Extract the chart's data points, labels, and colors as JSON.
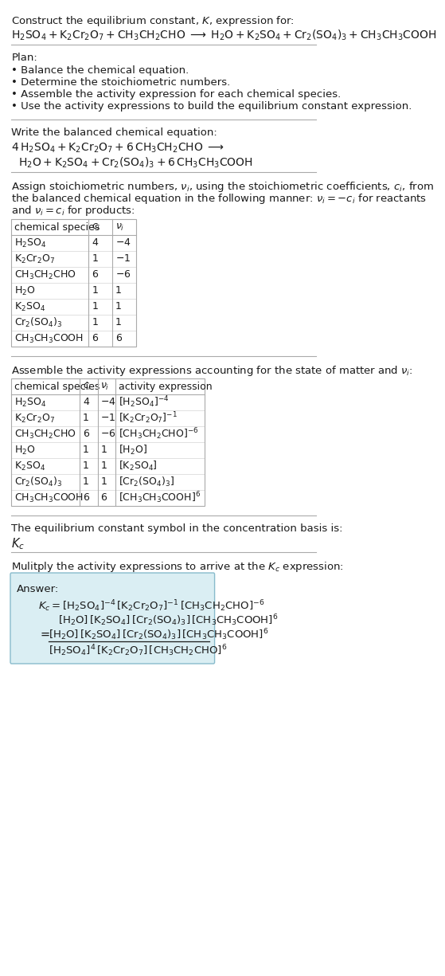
{
  "title_line1": "Construct the equilibrium constant, $K$, expression for:",
  "reaction_unbalanced": "$\\mathrm{H_2SO_4 + K_2Cr_2O_7 + CH_3CH_2CHO \\;\\longrightarrow\\; H_2O + K_2SO_4 + Cr_2(SO_4)_3 + CH_3CH_3COOH}$",
  "plan_header": "Plan:",
  "plan_items": [
    "\\textbf{\\cdot} Balance the chemical equation.",
    "\\textbf{\\cdot} Determine the stoichiometric numbers.",
    "\\textbf{\\cdot} Assemble the activity expression for each chemical species.",
    "\\textbf{\\cdot} Use the activity expressions to build the equilibrium constant expression."
  ],
  "balanced_header": "Write the balanced chemical equation:",
  "balanced_line1": "$4\\,\\mathrm{H_2SO_4 + K_2Cr_2O_7 + 6\\,CH_3CH_2CHO \\;\\longrightarrow}$",
  "balanced_line2": "$\\mathrm{H_2O + K_2SO_4 + Cr_2(SO_4)_3 + 6\\,CH_3CH_3COOH}$",
  "assign_header": "Assign stoichiometric numbers, $\\nu_i$, using the stoichiometric coefficients, $c_i$, from the balanced chemical equation in the following manner: $\\nu_i = -c_i$ for reactants and $\\nu_i = c_i$ for products:",
  "table1_headers": [
    "chemical species",
    "$c_i$",
    "$\\nu_i$"
  ],
  "table1_rows": [
    [
      "$\\mathrm{H_2SO_4}$",
      "4",
      "$-4$"
    ],
    [
      "$\\mathrm{K_2Cr_2O_7}$",
      "1",
      "$-1$"
    ],
    [
      "$\\mathrm{CH_3CH_2CHO}$",
      "6",
      "$-6$"
    ],
    [
      "$\\mathrm{H_2O}$",
      "1",
      "1"
    ],
    [
      "$\\mathrm{K_2SO_4}$",
      "1",
      "1"
    ],
    [
      "$\\mathrm{Cr_2(SO_4)_3}$",
      "1",
      "1"
    ],
    [
      "$\\mathrm{CH_3CH_3COOH}$",
      "6",
      "6"
    ]
  ],
  "assemble_header": "Assemble the activity expressions accounting for the state of matter and $\\nu_i$:",
  "table2_headers": [
    "chemical species",
    "$c_i$",
    "$\\nu_i$",
    "activity expression"
  ],
  "table2_rows": [
    [
      "$\\mathrm{H_2SO_4}$",
      "4",
      "$-4$",
      "$[\\mathrm{H_2SO_4}]^{-4}$"
    ],
    [
      "$\\mathrm{K_2Cr_2O_7}$",
      "1",
      "$-1$",
      "$[\\mathrm{K_2Cr_2O_7}]^{-1}$"
    ],
    [
      "$\\mathrm{CH_3CH_2CHO}$",
      "6",
      "$-6$",
      "$[\\mathrm{CH_3CH_2CHO}]^{-6}$"
    ],
    [
      "$\\mathrm{H_2O}$",
      "1",
      "1",
      "$[\\mathrm{H_2O}]$"
    ],
    [
      "$\\mathrm{K_2SO_4}$",
      "1",
      "1",
      "$[\\mathrm{K_2SO_4}]$"
    ],
    [
      "$\\mathrm{Cr_2(SO_4)_3}$",
      "1",
      "1",
      "$[\\mathrm{Cr_2(SO_4)_3}]$"
    ],
    [
      "$\\mathrm{CH_3CH_3COOH}$",
      "6",
      "6",
      "$[\\mathrm{CH_3CH_3COOH}]^6$"
    ]
  ],
  "kc_symbol_header": "The equilibrium constant symbol in the concentration basis is:",
  "kc_symbol": "$K_c$",
  "multiply_header": "Mulitply the activity expressions to arrive at the $K_c$ expression:",
  "answer_line1": "$K_c = [\\mathrm{H_2SO_4}]^{-4}\\,[\\mathrm{K_2Cr_2O_7}]^{-1}\\,[\\mathrm{CH_3CH_2CHO}]^{-6}$",
  "answer_line2": "$[\\mathrm{H_2O}]\\,[\\mathrm{K_2SO_4}]\\,[\\mathrm{Cr_2(SO_4)_3}]\\,[\\mathrm{CH_3CH_3COOH}]^6$",
  "answer_eq_line1": "$[\\mathrm{H_2O}]\\,[\\mathrm{K_2SO_4}]\\,[\\mathrm{Cr_2(SO_4)_3}]\\,[\\mathrm{CH_3CH_3COOH}]^6$",
  "answer_eq_line2": "$[\\mathrm{H_2SO_4}]^4\\,[\\mathrm{K_2Cr_2O_7}]\\,[\\mathrm{CH_3CH_2CHO}]^6$",
  "bg_color": "#ffffff",
  "answer_box_color": "#daeef3",
  "table_line_color": "#aaaaaa",
  "text_color": "#1a1a1a",
  "font_size": 9.5
}
